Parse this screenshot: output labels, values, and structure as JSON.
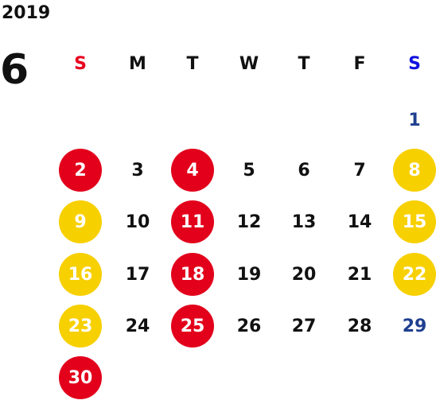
{
  "calendar": {
    "year": "2019",
    "month": "6",
    "weekdays": [
      "S",
      "M",
      "T",
      "W",
      "T",
      "F",
      "S"
    ],
    "weekday_colors": [
      "#e8001e",
      "#111111",
      "#111111",
      "#111111",
      "#111111",
      "#111111",
      "#1010e0"
    ],
    "colors": {
      "red_circle": "#e2001b",
      "yellow_circle": "#f7d000",
      "saturday_blue": "#1f3f8f",
      "text_dark": "#111111",
      "text_on_circle": "#ffffff"
    },
    "days": [
      {
        "d": "1",
        "col": 6,
        "row": 0,
        "style": "blue"
      },
      {
        "d": "2",
        "col": 0,
        "row": 1,
        "style": "red"
      },
      {
        "d": "3",
        "col": 1,
        "row": 1,
        "style": "plain"
      },
      {
        "d": "4",
        "col": 2,
        "row": 1,
        "style": "red"
      },
      {
        "d": "5",
        "col": 3,
        "row": 1,
        "style": "plain"
      },
      {
        "d": "6",
        "col": 4,
        "row": 1,
        "style": "plain"
      },
      {
        "d": "7",
        "col": 5,
        "row": 1,
        "style": "plain"
      },
      {
        "d": "8",
        "col": 6,
        "row": 1,
        "style": "yellow"
      },
      {
        "d": "9",
        "col": 0,
        "row": 2,
        "style": "yellow"
      },
      {
        "d": "10",
        "col": 1,
        "row": 2,
        "style": "plain"
      },
      {
        "d": "11",
        "col": 2,
        "row": 2,
        "style": "red"
      },
      {
        "d": "12",
        "col": 3,
        "row": 2,
        "style": "plain"
      },
      {
        "d": "13",
        "col": 4,
        "row": 2,
        "style": "plain"
      },
      {
        "d": "14",
        "col": 5,
        "row": 2,
        "style": "plain"
      },
      {
        "d": "15",
        "col": 6,
        "row": 2,
        "style": "yellow"
      },
      {
        "d": "16",
        "col": 0,
        "row": 3,
        "style": "yellow"
      },
      {
        "d": "17",
        "col": 1,
        "row": 3,
        "style": "plain"
      },
      {
        "d": "18",
        "col": 2,
        "row": 3,
        "style": "red"
      },
      {
        "d": "19",
        "col": 3,
        "row": 3,
        "style": "plain"
      },
      {
        "d": "20",
        "col": 4,
        "row": 3,
        "style": "plain"
      },
      {
        "d": "21",
        "col": 5,
        "row": 3,
        "style": "plain"
      },
      {
        "d": "22",
        "col": 6,
        "row": 3,
        "style": "yellow"
      },
      {
        "d": "23",
        "col": 0,
        "row": 4,
        "style": "yellow"
      },
      {
        "d": "24",
        "col": 1,
        "row": 4,
        "style": "plain"
      },
      {
        "d": "25",
        "col": 2,
        "row": 4,
        "style": "red"
      },
      {
        "d": "26",
        "col": 3,
        "row": 4,
        "style": "plain"
      },
      {
        "d": "27",
        "col": 4,
        "row": 4,
        "style": "plain"
      },
      {
        "d": "28",
        "col": 5,
        "row": 4,
        "style": "plain"
      },
      {
        "d": "29",
        "col": 6,
        "row": 4,
        "style": "blue"
      },
      {
        "d": "30",
        "col": 0,
        "row": 5,
        "style": "red"
      }
    ]
  }
}
